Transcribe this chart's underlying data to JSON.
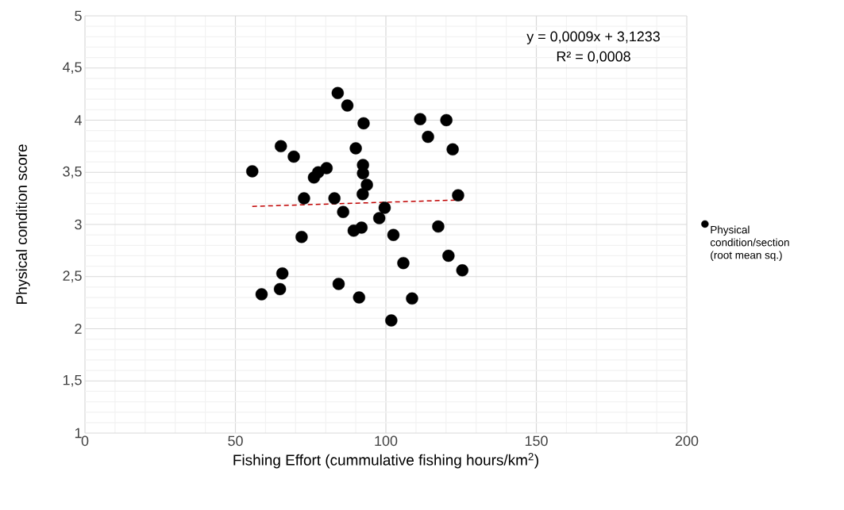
{
  "chart_data": {
    "type": "scatter",
    "xlabel": "Fishing Effort (cummulative fishing hours/km$^{2}$)",
    "ylabel": "Physical condition score",
    "annotations": [
      "y = 0,0009x + 3,1233",
      "R² = 0,0008"
    ],
    "xlim": [
      0,
      200
    ],
    "xticks": [
      0,
      50,
      100,
      150,
      200
    ],
    "ylim": [
      1,
      5
    ],
    "yticks": [
      1,
      {
        "value": 1.5,
        "label": "1,5"
      },
      2,
      {
        "value": 2.5,
        "label": "2,5"
      },
      3,
      {
        "value": 3.5,
        "label": "3,5"
      },
      4,
      {
        "value": 4.5,
        "label": "4,5"
      },
      5
    ],
    "grid": true,
    "legend": "right",
    "marker": "circle",
    "series": [
      {
        "name": "Physical condition/section (root mean sq.)",
        "color": "#000000",
        "x": [
          84.0,
          87.2,
          92.6,
          65.1,
          69.4,
          90.0,
          55.6,
          76.1,
          77.5,
          80.3,
          92.4,
          92.4,
          93.7,
          92.3,
          72.8,
          82.9,
          85.8,
          99.6,
          97.8,
          89.3,
          91.9,
          72.0,
          102.5,
          65.6,
          64.8,
          58.7,
          84.3,
          91.1,
          101.8,
          111.4,
          120.1,
          114.0,
          122.2,
          124.0,
          117.4,
          120.8,
          125.4,
          105.8,
          108.7
        ],
        "values": [
          4.26,
          4.14,
          3.97,
          3.75,
          3.65,
          3.73,
          3.51,
          3.45,
          3.5,
          3.54,
          3.57,
          3.49,
          3.38,
          3.29,
          3.25,
          3.25,
          3.12,
          3.16,
          3.06,
          2.94,
          2.97,
          2.88,
          2.9,
          2.53,
          2.38,
          2.33,
          2.43,
          2.3,
          2.08,
          4.01,
          4.0,
          3.84,
          3.72,
          3.28,
          2.98,
          2.7,
          2.56,
          2.63,
          2.29
        ]
      },
      {
        "type": "line",
        "color": "#c00000",
        "line_style": "dashed",
        "marker": "none",
        "x": [
          55.6,
          125.4
        ],
        "values": [
          3.173,
          3.236
        ]
      }
    ]
  }
}
